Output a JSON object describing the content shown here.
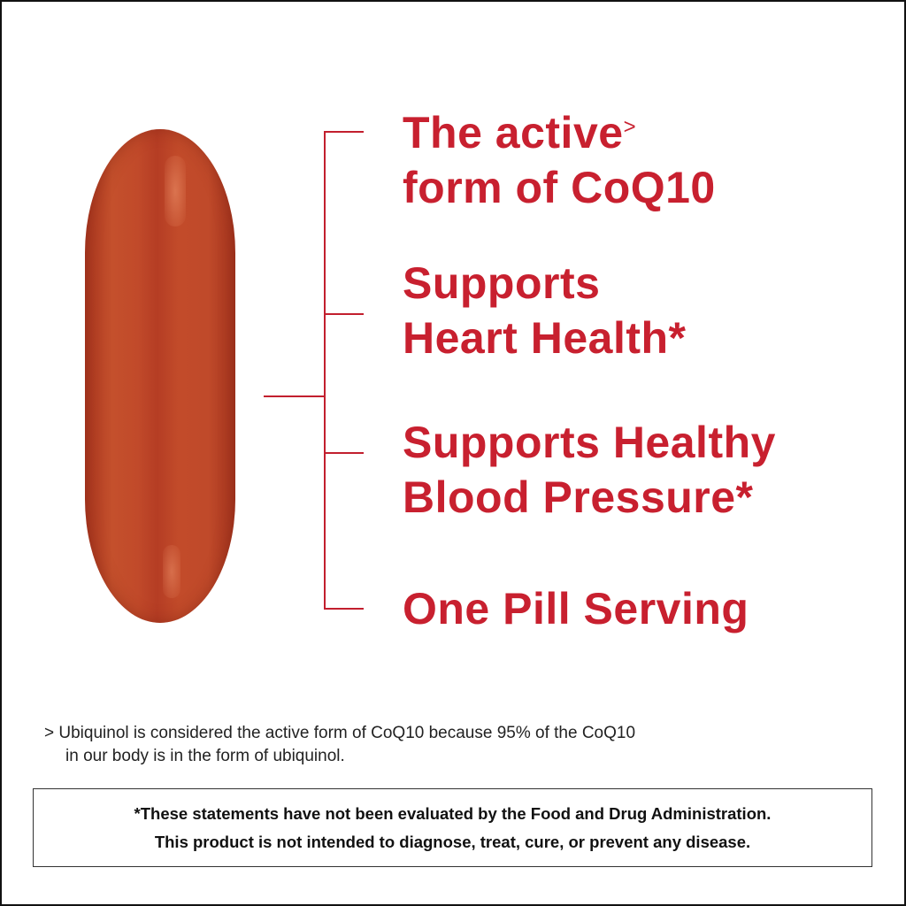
{
  "colors": {
    "accent": "#c8202f",
    "pill": "#c04a2a"
  },
  "image": {
    "subject": "softgel-pill"
  },
  "claims": [
    {
      "line1": "The active",
      "marker": ">",
      "line2": "form of CoQ10"
    },
    {
      "line1": "Supports",
      "line2": "Heart Health*"
    },
    {
      "line1": "Supports Healthy",
      "line2": "Blood Pressure*"
    },
    {
      "line1": "One Pill Serving"
    }
  ],
  "footnote": {
    "marker": ">",
    "line1": "Ubiquinol is considered the active form of CoQ10 because 95% of the CoQ10",
    "line2": "in our body is in the form of ubiquinol."
  },
  "disclaimer": {
    "line1": "*These statements have not been evaluated by the Food and Drug Administration.",
    "line2": "This product is not intended to diagnose, treat, cure, or prevent any disease."
  }
}
